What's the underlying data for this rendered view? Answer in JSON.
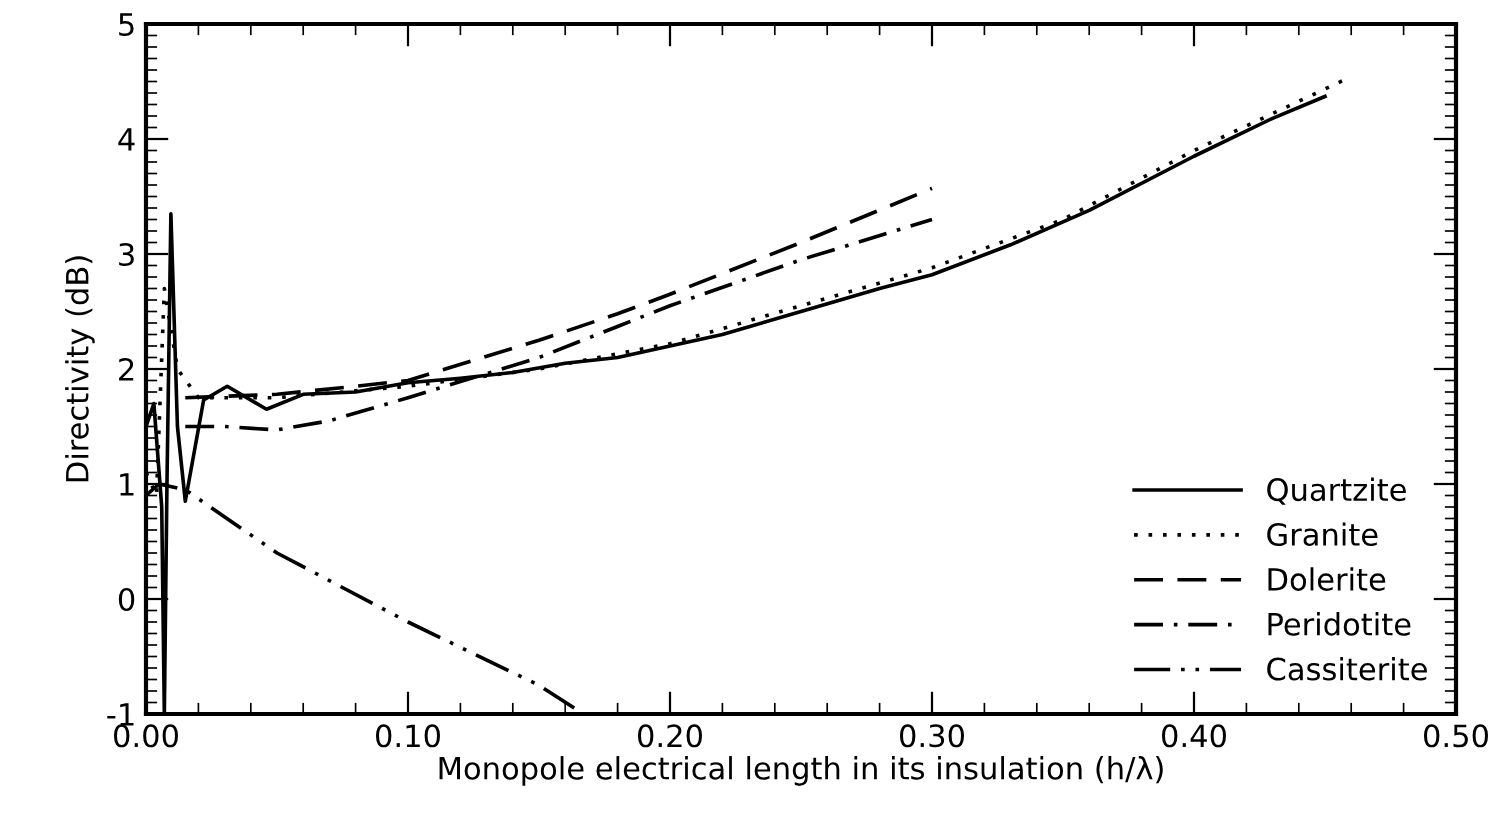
{
  "chart_data": {
    "type": "line",
    "xlabel": "Monopole electrical length in its insulation (h/λ)",
    "ylabel": "Directivity (dB)",
    "xlim": [
      0,
      0.5
    ],
    "ylim": [
      -1,
      5
    ],
    "xticks": [
      {
        "value": 0,
        "label": "0.00"
      },
      {
        "value": 0.1,
        "label": "0.10"
      },
      {
        "value": 0.2,
        "label": "0.20"
      },
      {
        "value": 0.3,
        "label": "0.30"
      },
      {
        "value": 0.4,
        "label": "0.40"
      },
      {
        "value": 0.5,
        "label": "0.50"
      }
    ],
    "yticks": [
      -1,
      0,
      1,
      2,
      3,
      4,
      5
    ],
    "grid": false,
    "legend": "bottom right",
    "series": [
      {
        "name": "Quartzite",
        "color": "#000000",
        "line_style": "solid",
        "x": [
          0.0,
          0.003,
          0.006,
          0.007,
          0.008,
          0.0095,
          0.012,
          0.015,
          0.022,
          0.031,
          0.046,
          0.06,
          0.08,
          0.1,
          0.12,
          0.14,
          0.16,
          0.18,
          0.2,
          0.22,
          0.25,
          0.28,
          0.3,
          0.33,
          0.36,
          0.4,
          0.43,
          0.45
        ],
        "values": [
          1.5,
          1.7,
          0.8,
          -1.0,
          1.0,
          3.35,
          1.5,
          0.85,
          1.73,
          1.85,
          1.65,
          1.78,
          1.8,
          1.88,
          1.92,
          1.97,
          2.05,
          2.1,
          2.2,
          2.3,
          2.5,
          2.7,
          2.82,
          3.08,
          3.38,
          3.85,
          4.18,
          4.37
        ]
      },
      {
        "name": "Granite",
        "color": "#000000",
        "line_style": "dotted",
        "x": [
          0.0,
          0.004,
          0.007,
          0.012,
          0.02,
          0.05,
          0.1,
          0.15,
          0.2,
          0.25,
          0.3,
          0.35,
          0.4,
          0.457
        ],
        "values": [
          1.1,
          0.9,
          2.7,
          2.0,
          1.75,
          1.75,
          1.85,
          2.0,
          2.22,
          2.55,
          2.88,
          3.3,
          3.9,
          4.51
        ]
      },
      {
        "name": "Dolerite",
        "color": "#000000",
        "line_style": "dashed",
        "x": [
          0.015,
          0.05,
          0.08,
          0.1,
          0.15,
          0.18,
          0.2,
          0.25,
          0.3
        ],
        "values": [
          1.75,
          1.78,
          1.85,
          1.9,
          2.25,
          2.48,
          2.65,
          3.1,
          3.57
        ]
      },
      {
        "name": "Peridotite",
        "color": "#000000",
        "line_style": "dashdot",
        "x": [
          0.015,
          0.03,
          0.05,
          0.07,
          0.1,
          0.15,
          0.18,
          0.2,
          0.25,
          0.3
        ],
        "values": [
          1.5,
          1.5,
          1.47,
          1.55,
          1.75,
          2.1,
          2.37,
          2.55,
          2.95,
          3.3
        ]
      },
      {
        "name": "Cassiterite",
        "color": "#000000",
        "line_style": "dashdotdot",
        "x": [
          0.0,
          0.005,
          0.015,
          0.05,
          0.1,
          0.15,
          0.167
        ],
        "values": [
          0.9,
          1.0,
          0.95,
          0.4,
          -0.2,
          -0.75,
          -1.0
        ]
      }
    ]
  }
}
